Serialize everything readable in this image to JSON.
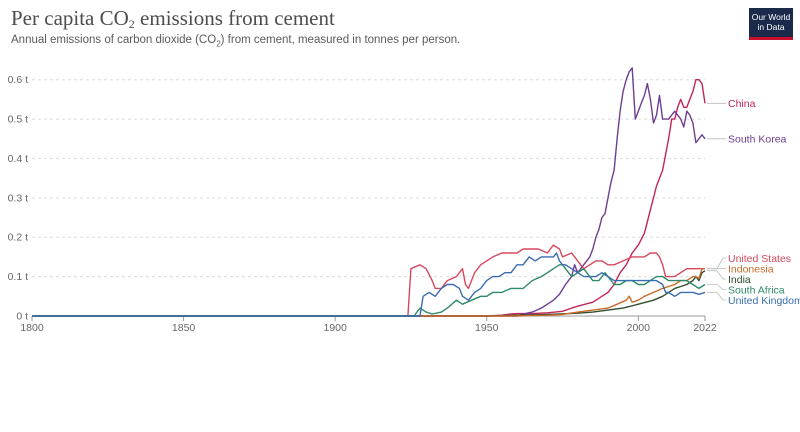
{
  "header": {
    "title_main": "Per capita CO",
    "title_sub": "2",
    "title_rest": " emissions from cement",
    "subtitle_main": "Annual emissions of carbon dioxide (CO",
    "subtitle_sub": "2",
    "subtitle_rest": ") from cement, measured in tonnes per person.",
    "logo_line1": "Our World",
    "logo_line2": "in Data"
  },
  "chart_data": {
    "type": "line",
    "title": "Per capita CO₂ emissions from cement",
    "subtitle": "Annual emissions of carbon dioxide (CO₂) from cement, measured in tonnes per person.",
    "xlim": [
      1800,
      2022
    ],
    "ylim": [
      0,
      0.65
    ],
    "x_ticks": [
      1800,
      1850,
      1900,
      1950,
      2000,
      2022
    ],
    "y_ticks": [
      {
        "value": 0,
        "label": "0 t"
      },
      {
        "value": 0.1,
        "label": "0.1 t"
      },
      {
        "value": 0.2,
        "label": "0.2 t"
      },
      {
        "value": 0.3,
        "label": "0.3 t"
      },
      {
        "value": 0.4,
        "label": "0.4 t"
      },
      {
        "value": 0.5,
        "label": "0.5 t"
      },
      {
        "value": 0.6,
        "label": "0.6 t"
      }
    ],
    "grid": "horizontal-dashed",
    "legend": "end-of-line labels",
    "series": [
      {
        "name": "China",
        "color": "#c2255c",
        "points": [
          [
            1800,
            0
          ],
          [
            1950,
            0
          ],
          [
            1955,
            0.002
          ],
          [
            1958,
            0.005
          ],
          [
            1960,
            0.006
          ],
          [
            1965,
            0.006
          ],
          [
            1970,
            0.008
          ],
          [
            1975,
            0.012
          ],
          [
            1978,
            0.02
          ],
          [
            1980,
            0.025
          ],
          [
            1985,
            0.035
          ],
          [
            1988,
            0.05
          ],
          [
            1990,
            0.06
          ],
          [
            1992,
            0.08
          ],
          [
            1994,
            0.11
          ],
          [
            1996,
            0.13
          ],
          [
            1998,
            0.16
          ],
          [
            2000,
            0.18
          ],
          [
            2002,
            0.21
          ],
          [
            2004,
            0.27
          ],
          [
            2005,
            0.3
          ],
          [
            2006,
            0.33
          ],
          [
            2008,
            0.37
          ],
          [
            2010,
            0.45
          ],
          [
            2011,
            0.5
          ],
          [
            2012,
            0.5
          ],
          [
            2013,
            0.53
          ],
          [
            2014,
            0.55
          ],
          [
            2015,
            0.53
          ],
          [
            2016,
            0.53
          ],
          [
            2017,
            0.55
          ],
          [
            2018,
            0.57
          ],
          [
            2019,
            0.6
          ],
          [
            2020,
            0.6
          ],
          [
            2021,
            0.59
          ],
          [
            2022,
            0.54
          ]
        ]
      },
      {
        "name": "South Korea",
        "color": "#6d3e91",
        "points": [
          [
            1800,
            0
          ],
          [
            1960,
            0
          ],
          [
            1962,
            0.005
          ],
          [
            1965,
            0.01
          ],
          [
            1968,
            0.02
          ],
          [
            1970,
            0.03
          ],
          [
            1972,
            0.04
          ],
          [
            1974,
            0.055
          ],
          [
            1976,
            0.08
          ],
          [
            1978,
            0.1
          ],
          [
            1979,
            0.13
          ],
          [
            1980,
            0.11
          ],
          [
            1982,
            0.13
          ],
          [
            1984,
            0.15
          ],
          [
            1985,
            0.17
          ],
          [
            1986,
            0.2
          ],
          [
            1987,
            0.22
          ],
          [
            1988,
            0.25
          ],
          [
            1989,
            0.26
          ],
          [
            1990,
            0.3
          ],
          [
            1991,
            0.34
          ],
          [
            1992,
            0.37
          ],
          [
            1993,
            0.45
          ],
          [
            1994,
            0.52
          ],
          [
            1995,
            0.57
          ],
          [
            1996,
            0.6
          ],
          [
            1997,
            0.62
          ],
          [
            1998,
            0.63
          ],
          [
            1999,
            0.5
          ],
          [
            2000,
            0.52
          ],
          [
            2001,
            0.54
          ],
          [
            2002,
            0.56
          ],
          [
            2003,
            0.59
          ],
          [
            2004,
            0.55
          ],
          [
            2005,
            0.49
          ],
          [
            2006,
            0.51
          ],
          [
            2007,
            0.56
          ],
          [
            2008,
            0.5
          ],
          [
            2009,
            0.5
          ],
          [
            2010,
            0.5
          ],
          [
            2011,
            0.51
          ],
          [
            2012,
            0.52
          ],
          [
            2013,
            0.51
          ],
          [
            2014,
            0.5
          ],
          [
            2015,
            0.48
          ],
          [
            2016,
            0.52
          ],
          [
            2017,
            0.51
          ],
          [
            2018,
            0.49
          ],
          [
            2019,
            0.44
          ],
          [
            2020,
            0.45
          ],
          [
            2021,
            0.46
          ],
          [
            2022,
            0.45
          ]
        ]
      },
      {
        "name": "United States",
        "color": "#d6485e",
        "points": [
          [
            1800,
            0
          ],
          [
            1924,
            0
          ],
          [
            1925,
            0.12
          ],
          [
            1928,
            0.13
          ],
          [
            1930,
            0.12
          ],
          [
            1932,
            0.09
          ],
          [
            1933,
            0.07
          ],
          [
            1935,
            0.07
          ],
          [
            1937,
            0.09
          ],
          [
            1940,
            0.1
          ],
          [
            1942,
            0.12
          ],
          [
            1943,
            0.08
          ],
          [
            1944,
            0.07
          ],
          [
            1946,
            0.11
          ],
          [
            1948,
            0.13
          ],
          [
            1950,
            0.14
          ],
          [
            1952,
            0.15
          ],
          [
            1955,
            0.16
          ],
          [
            1957,
            0.16
          ],
          [
            1960,
            0.16
          ],
          [
            1962,
            0.17
          ],
          [
            1965,
            0.17
          ],
          [
            1967,
            0.17
          ],
          [
            1970,
            0.16
          ],
          [
            1972,
            0.18
          ],
          [
            1974,
            0.17
          ],
          [
            1975,
            0.15
          ],
          [
            1978,
            0.16
          ],
          [
            1980,
            0.14
          ],
          [
            1982,
            0.12
          ],
          [
            1984,
            0.13
          ],
          [
            1986,
            0.14
          ],
          [
            1988,
            0.14
          ],
          [
            1990,
            0.13
          ],
          [
            1992,
            0.13
          ],
          [
            1995,
            0.14
          ],
          [
            1998,
            0.15
          ],
          [
            2000,
            0.15
          ],
          [
            2002,
            0.15
          ],
          [
            2004,
            0.16
          ],
          [
            2006,
            0.16
          ],
          [
            2007,
            0.15
          ],
          [
            2008,
            0.13
          ],
          [
            2009,
            0.1
          ],
          [
            2010,
            0.1
          ],
          [
            2012,
            0.1
          ],
          [
            2014,
            0.11
          ],
          [
            2016,
            0.12
          ],
          [
            2018,
            0.12
          ],
          [
            2020,
            0.12
          ],
          [
            2022,
            0.12
          ]
        ]
      },
      {
        "name": "India",
        "color": "#2f4f2f",
        "points": [
          [
            1800,
            0
          ],
          [
            1950,
            0
          ],
          [
            1960,
            0.002
          ],
          [
            1970,
            0.004
          ],
          [
            1980,
            0.007
          ],
          [
            1985,
            0.01
          ],
          [
            1990,
            0.015
          ],
          [
            1995,
            0.02
          ],
          [
            2000,
            0.03
          ],
          [
            2005,
            0.04
          ],
          [
            2008,
            0.05
          ],
          [
            2010,
            0.06
          ],
          [
            2012,
            0.07
          ],
          [
            2014,
            0.075
          ],
          [
            2016,
            0.08
          ],
          [
            2018,
            0.09
          ],
          [
            2019,
            0.1
          ],
          [
            2020,
            0.09
          ],
          [
            2021,
            0.11
          ],
          [
            2022,
            0.115
          ]
        ]
      },
      {
        "name": "Indonesia",
        "color": "#c96b2b",
        "points": [
          [
            1800,
            0
          ],
          [
            1960,
            0
          ],
          [
            1970,
            0.002
          ],
          [
            1975,
            0.004
          ],
          [
            1980,
            0.01
          ],
          [
            1985,
            0.015
          ],
          [
            1990,
            0.02
          ],
          [
            1993,
            0.03
          ],
          [
            1996,
            0.04
          ],
          [
            1997,
            0.05
          ],
          [
            1998,
            0.035
          ],
          [
            2000,
            0.04
          ],
          [
            2002,
            0.05
          ],
          [
            2005,
            0.06
          ],
          [
            2008,
            0.07
          ],
          [
            2010,
            0.075
          ],
          [
            2012,
            0.08
          ],
          [
            2014,
            0.09
          ],
          [
            2016,
            0.09
          ],
          [
            2018,
            0.1
          ],
          [
            2019,
            0.1
          ],
          [
            2020,
            0.095
          ],
          [
            2021,
            0.12
          ],
          [
            2022,
            0.12
          ]
        ]
      },
      {
        "name": "South Africa",
        "color": "#2e8a66",
        "points": [
          [
            1800,
            0
          ],
          [
            1926,
            0
          ],
          [
            1928,
            0.02
          ],
          [
            1930,
            0.01
          ],
          [
            1932,
            0.005
          ],
          [
            1935,
            0.01
          ],
          [
            1937,
            0.02
          ],
          [
            1940,
            0.04
          ],
          [
            1942,
            0.03
          ],
          [
            1945,
            0.04
          ],
          [
            1948,
            0.05
          ],
          [
            1950,
            0.05
          ],
          [
            1952,
            0.06
          ],
          [
            1955,
            0.06
          ],
          [
            1958,
            0.07
          ],
          [
            1960,
            0.07
          ],
          [
            1962,
            0.07
          ],
          [
            1965,
            0.09
          ],
          [
            1968,
            0.1
          ],
          [
            1970,
            0.11
          ],
          [
            1972,
            0.12
          ],
          [
            1974,
            0.13
          ],
          [
            1975,
            0.13
          ],
          [
            1977,
            0.11
          ],
          [
            1978,
            0.1
          ],
          [
            1980,
            0.11
          ],
          [
            1982,
            0.12
          ],
          [
            1984,
            0.1
          ],
          [
            1985,
            0.09
          ],
          [
            1987,
            0.09
          ],
          [
            1989,
            0.11
          ],
          [
            1990,
            0.1
          ],
          [
            1992,
            0.08
          ],
          [
            1994,
            0.08
          ],
          [
            1996,
            0.09
          ],
          [
            1998,
            0.09
          ],
          [
            2000,
            0.08
          ],
          [
            2002,
            0.08
          ],
          [
            2004,
            0.09
          ],
          [
            2006,
            0.1
          ],
          [
            2008,
            0.1
          ],
          [
            2010,
            0.09
          ],
          [
            2012,
            0.09
          ],
          [
            2014,
            0.09
          ],
          [
            2016,
            0.09
          ],
          [
            2018,
            0.08
          ],
          [
            2020,
            0.07
          ],
          [
            2022,
            0.08
          ]
        ]
      },
      {
        "name": "United Kingdom",
        "color": "#3a6cb0",
        "points": [
          [
            1800,
            0
          ],
          [
            1928,
            0
          ],
          [
            1929,
            0.05
          ],
          [
            1931,
            0.06
          ],
          [
            1933,
            0.05
          ],
          [
            1935,
            0.07
          ],
          [
            1937,
            0.08
          ],
          [
            1939,
            0.08
          ],
          [
            1941,
            0.07
          ],
          [
            1942,
            0.05
          ],
          [
            1944,
            0.04
          ],
          [
            1946,
            0.06
          ],
          [
            1948,
            0.07
          ],
          [
            1950,
            0.09
          ],
          [
            1952,
            0.1
          ],
          [
            1954,
            0.1
          ],
          [
            1956,
            0.11
          ],
          [
            1958,
            0.11
          ],
          [
            1960,
            0.13
          ],
          [
            1962,
            0.13
          ],
          [
            1964,
            0.15
          ],
          [
            1966,
            0.14
          ],
          [
            1968,
            0.15
          ],
          [
            1970,
            0.15
          ],
          [
            1972,
            0.15
          ],
          [
            1973,
            0.16
          ],
          [
            1974,
            0.14
          ],
          [
            1975,
            0.13
          ],
          [
            1976,
            0.13
          ],
          [
            1978,
            0.12
          ],
          [
            1980,
            0.11
          ],
          [
            1982,
            0.1
          ],
          [
            1984,
            0.1
          ],
          [
            1986,
            0.1
          ],
          [
            1988,
            0.11
          ],
          [
            1990,
            0.1
          ],
          [
            1992,
            0.09
          ],
          [
            1994,
            0.09
          ],
          [
            1996,
            0.09
          ],
          [
            1998,
            0.09
          ],
          [
            2000,
            0.09
          ],
          [
            2002,
            0.09
          ],
          [
            2004,
            0.09
          ],
          [
            2006,
            0.09
          ],
          [
            2008,
            0.08
          ],
          [
            2009,
            0.06
          ],
          [
            2010,
            0.06
          ],
          [
            2012,
            0.05
          ],
          [
            2014,
            0.06
          ],
          [
            2016,
            0.06
          ],
          [
            2018,
            0.06
          ],
          [
            2020,
            0.055
          ],
          [
            2022,
            0.06
          ]
        ]
      }
    ]
  }
}
